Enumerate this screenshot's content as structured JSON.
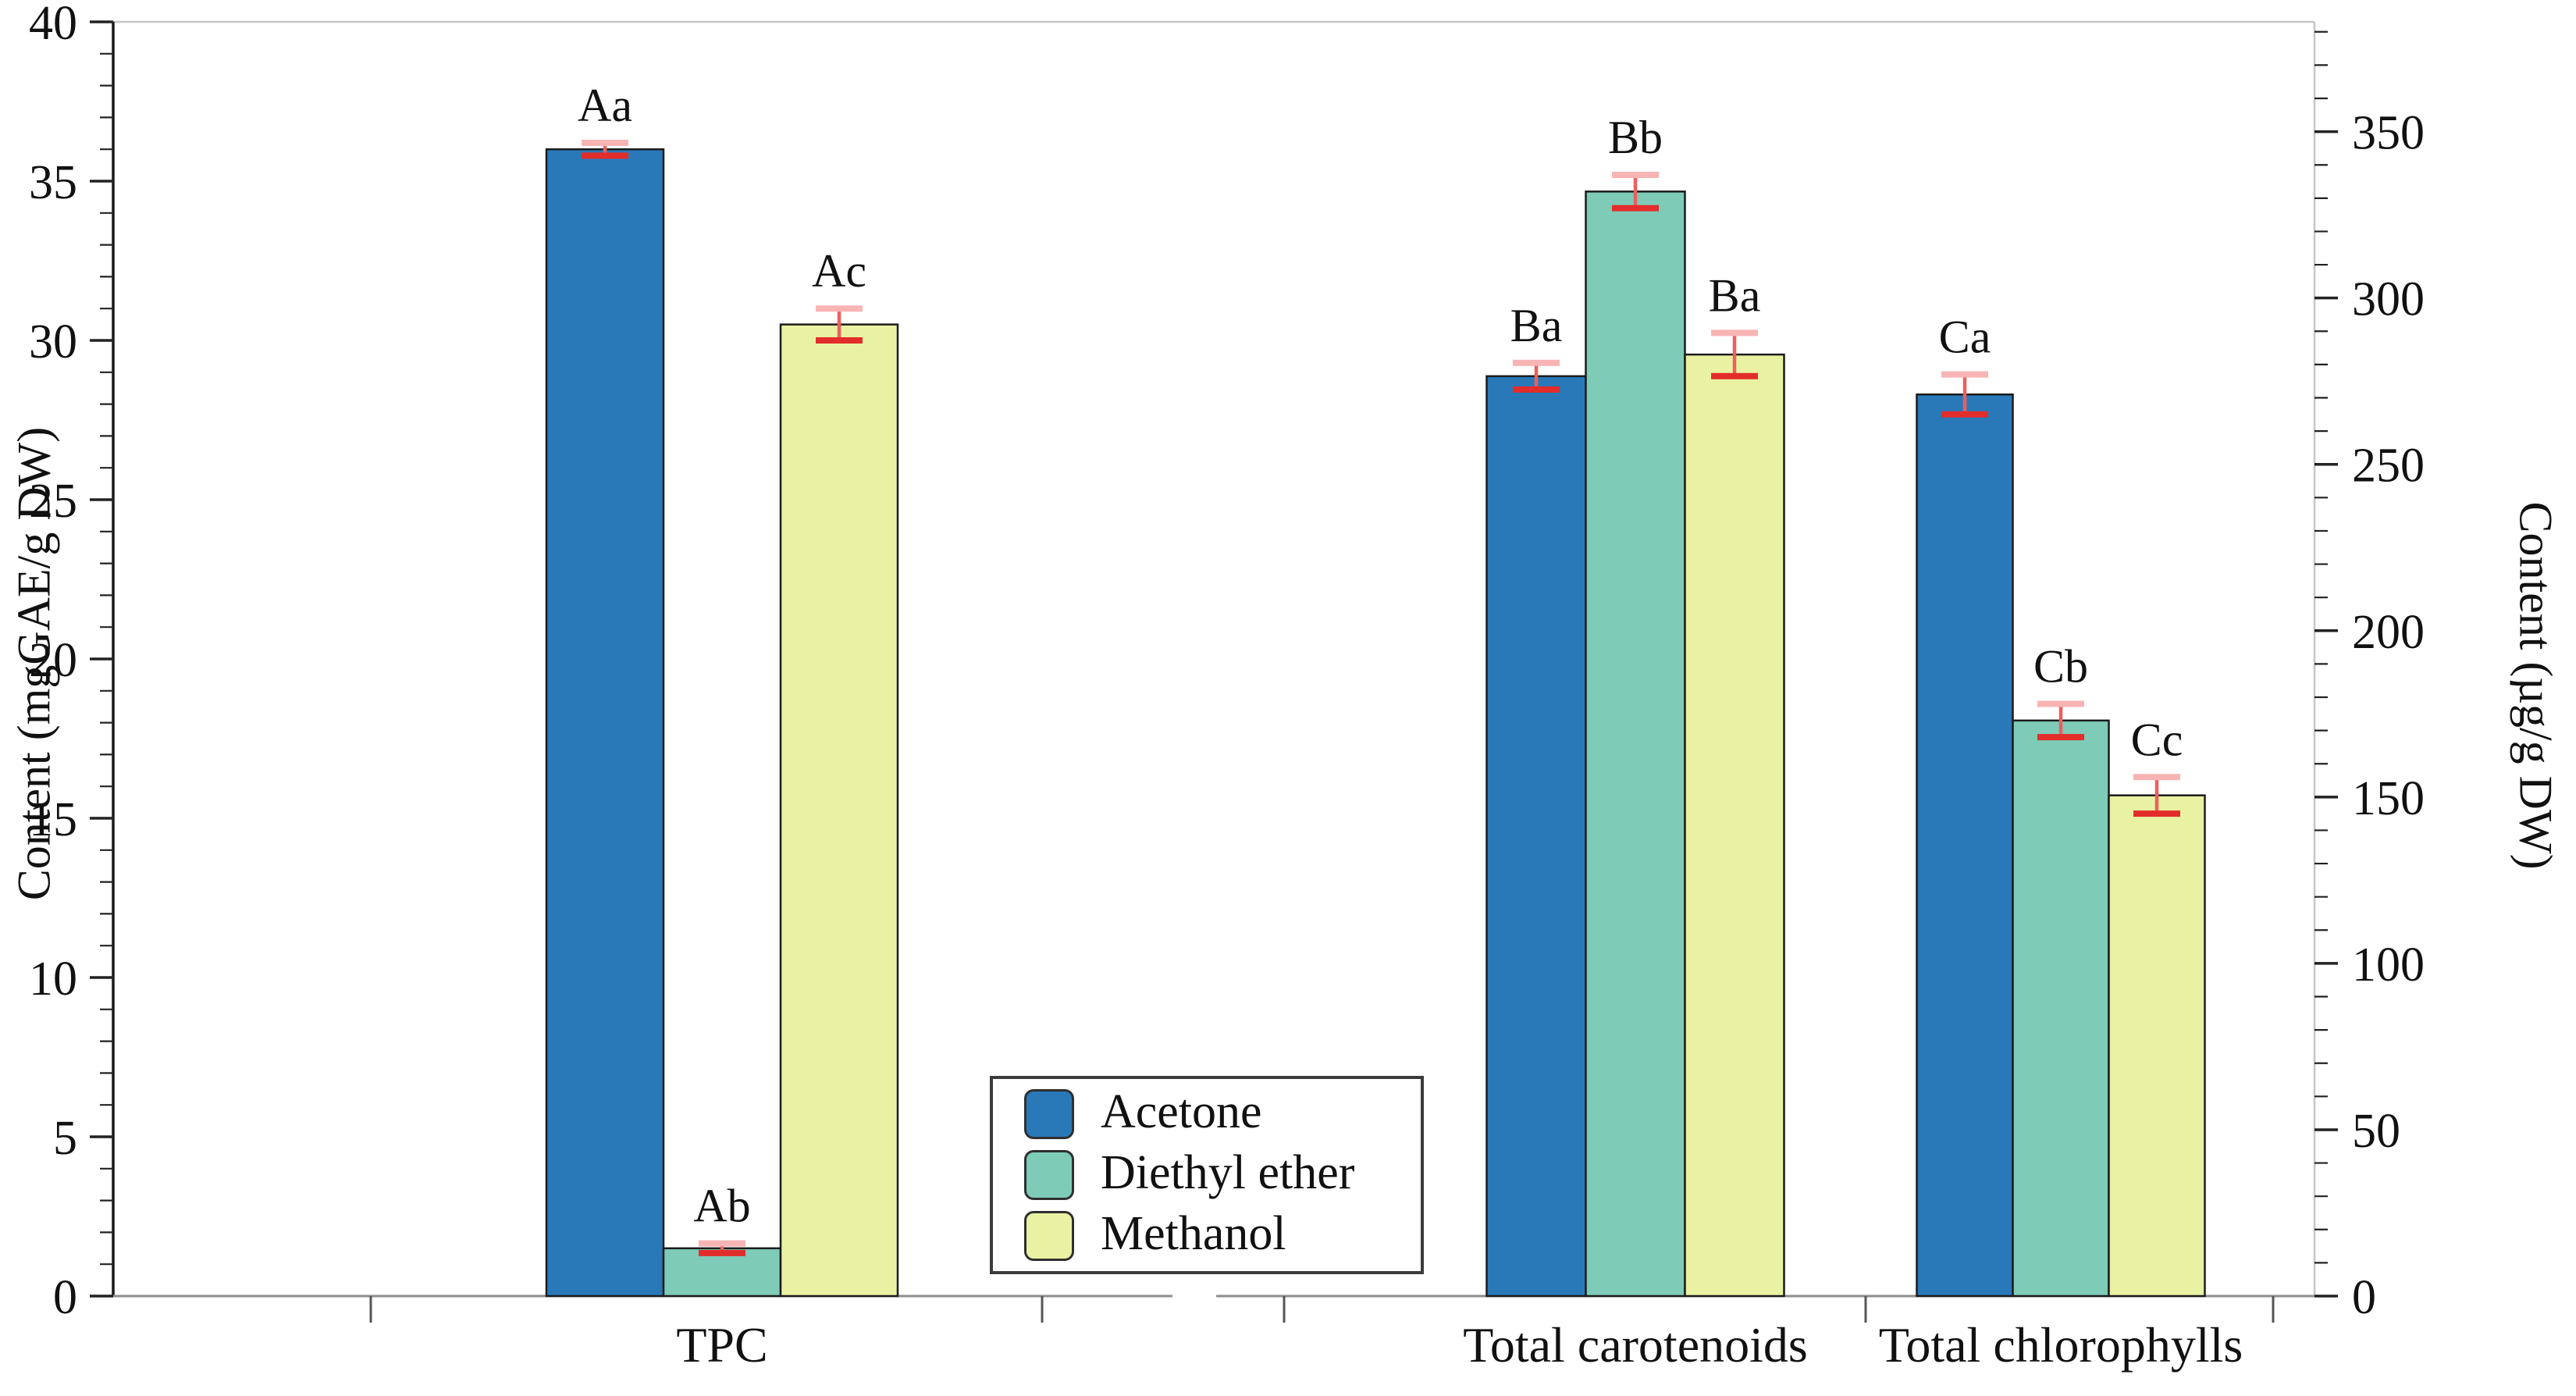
{
  "chart_data": {
    "type": "bar",
    "title": "",
    "categories": [
      "TPC",
      "Total carotenoids",
      "Total chlorophylls"
    ],
    "groups": [
      {
        "label": "TPC",
        "axis": "left"
      },
      {
        "label": "Total carotenoids",
        "axis": "right"
      },
      {
        "label": "Total chlorophylls",
        "axis": "right"
      }
    ],
    "series": [
      {
        "name": "Acetone",
        "color": "#2979b9",
        "values": [
          36.0,
          276.5,
          271
        ],
        "errors": [
          0.2,
          4,
          6
        ],
        "sig_labels": [
          "Aa",
          "Ba",
          "Ca"
        ]
      },
      {
        "name": "Diethyl ether",
        "color": "#7ecbb8",
        "values": [
          1.5,
          332,
          173
        ],
        "errors": [
          0.15,
          5,
          5
        ],
        "sig_labels": [
          "Ab",
          "Bb",
          "Cb"
        ]
      },
      {
        "name": "Methanol",
        "color": "#e9f2a3",
        "values": [
          30.5,
          283,
          150.5
        ],
        "errors": [
          0.5,
          6.5,
          5.5
        ],
        "sig_labels": [
          "Ac",
          "Ba",
          "Cc"
        ]
      }
    ],
    "left_axis": {
      "label": "Content (mgGAE/g DW)",
      "min": 0,
      "max": 40,
      "major_step": 5,
      "minor_step": 1,
      "tick_labels": [
        "0",
        "5",
        "10",
        "15",
        "20",
        "25",
        "30",
        "35",
        "40"
      ]
    },
    "right_axis": {
      "label": "Content (µg/g DW)",
      "min": 0,
      "max": 383,
      "major_step": 50,
      "minor_step": 10,
      "tick_labels": [
        "0",
        "50",
        "100",
        "150",
        "200",
        "250",
        "300",
        "350"
      ]
    },
    "x_axis": {
      "has_break": true,
      "grid": false
    },
    "error_bar": {
      "line_color": "#ec5f5d",
      "cap_top_color": "#f8b4b4",
      "cap_bottom_color": "#e22d2a"
    },
    "legend": {
      "position": "bottom-center",
      "items": [
        "Acetone",
        "Diethyl ether",
        "Methanol"
      ]
    }
  }
}
